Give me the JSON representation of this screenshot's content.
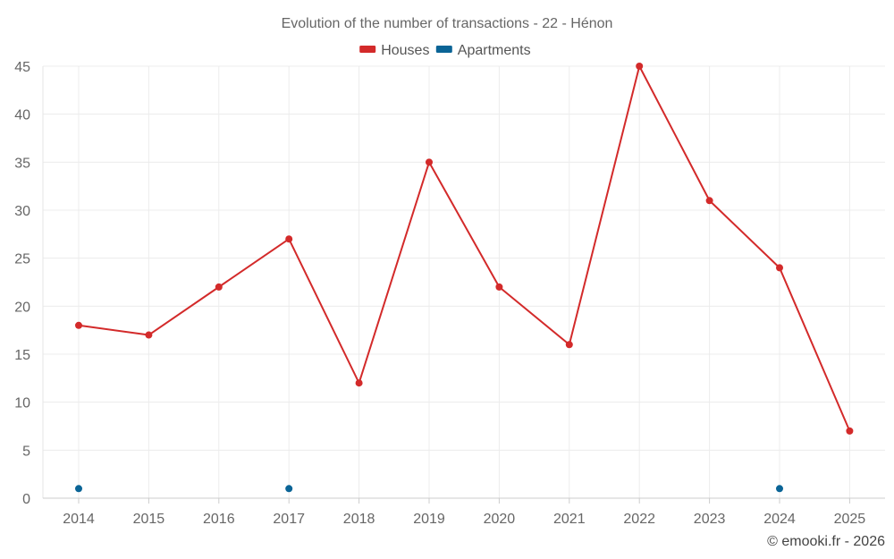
{
  "chart_data": {
    "type": "line",
    "title": "Evolution of the number of transactions - 22 - Hénon",
    "categories": [
      "2014",
      "2015",
      "2016",
      "2017",
      "2018",
      "2019",
      "2020",
      "2021",
      "2022",
      "2023",
      "2024",
      "2025"
    ],
    "series": [
      {
        "name": "Houses",
        "color": "#d32a2a",
        "style": "line-with-markers",
        "values": [
          18,
          17,
          22,
          27,
          12,
          35,
          22,
          16,
          45,
          31,
          24,
          7
        ]
      },
      {
        "name": "Apartments",
        "color": "#0a6496",
        "style": "markers-only",
        "values": [
          1,
          null,
          null,
          1,
          null,
          null,
          null,
          null,
          null,
          null,
          1,
          null
        ]
      }
    ],
    "ylim": [
      0,
      45
    ],
    "yticks": [
      0,
      5,
      10,
      15,
      20,
      25,
      30,
      35,
      40,
      45
    ],
    "xlabel": "",
    "ylabel": "",
    "grid": true,
    "legend_position": "top-center"
  },
  "credit": "© emooki.fr - 2026"
}
